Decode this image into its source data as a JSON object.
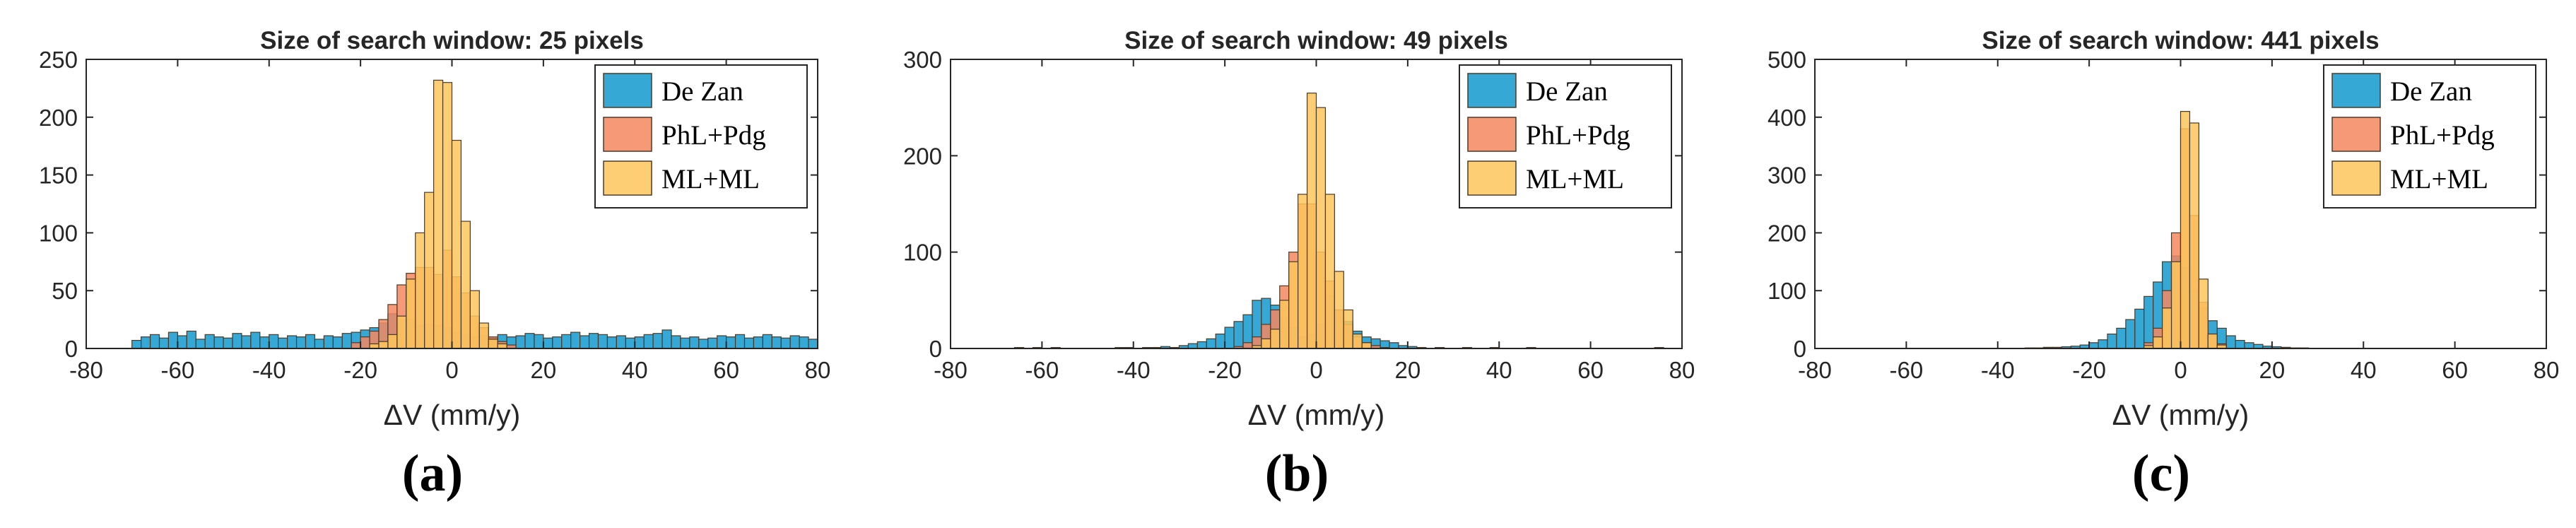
{
  "colors": {
    "de_zan": "#1f9ed1",
    "phl_pdg": "#f4875f",
    "ml_ml": "#fdc65a",
    "overlap": "#f1931c",
    "edge": "#4a3a2a",
    "axis": "#262626"
  },
  "chart_data": [
    {
      "type": "bar",
      "title": "Size of search window: 25 pixels",
      "xlabel": "ΔV (mm/y)",
      "ylabel": "",
      "xlim": [
        -80,
        80
      ],
      "ylim": [
        0,
        250
      ],
      "xticks": [
        "-80",
        "-60",
        "-40",
        "-20",
        "0",
        "20",
        "40",
        "60",
        "80"
      ],
      "yticks": [
        "0",
        "50",
        "100",
        "150",
        "200",
        "250"
      ],
      "legend": [
        "De Zan",
        "PhL+Pdg",
        "ML+ML"
      ],
      "legend_position": "top-right",
      "caption": "(a)",
      "series": [
        {
          "name": "De Zan",
          "bin_width": 2,
          "bin_start": -70,
          "counts": [
            7,
            10,
            12,
            9,
            14,
            11,
            15,
            8,
            12,
            10,
            9,
            13,
            11,
            14,
            10,
            12,
            9,
            11,
            10,
            12,
            8,
            11,
            10,
            13,
            14,
            16,
            18,
            22,
            30,
            24,
            25,
            20,
            21,
            20,
            18,
            14,
            12,
            10,
            11,
            9,
            12,
            10,
            11,
            13,
            12,
            9,
            10,
            12,
            14,
            11,
            13,
            12,
            10,
            11,
            9,
            10,
            12,
            13,
            16,
            11,
            9,
            10,
            8,
            9,
            11,
            10,
            12,
            9,
            10,
            12,
            10,
            9,
            11,
            10,
            8
          ]
        },
        {
          "name": "PhL+Pdg",
          "bin_width": 2,
          "bin_start": -22,
          "counts": [
            5,
            10,
            15,
            25,
            38,
            55,
            65,
            70,
            70,
            64,
            85,
            62,
            48,
            28,
            18,
            10,
            6,
            3
          ]
        },
        {
          "name": "ML+ML",
          "bin_width": 2,
          "bin_start": -18,
          "counts": [
            4,
            6,
            12,
            28,
            60,
            100,
            135,
            232,
            230,
            180,
            110,
            50,
            22,
            8,
            4
          ]
        }
      ]
    },
    {
      "type": "bar",
      "title": "Size of search window: 49 pixels",
      "xlabel": "ΔV (mm/y)",
      "ylabel": "",
      "xlim": [
        -80,
        80
      ],
      "ylim": [
        0,
        300
      ],
      "xticks": [
        "-80",
        "-60",
        "-40",
        "-20",
        "0",
        "20",
        "40",
        "60",
        "80"
      ],
      "yticks": [
        "0",
        "100",
        "200",
        "300"
      ],
      "legend": [
        "De Zan",
        "PhL+Pdg",
        "ML+ML"
      ],
      "legend_position": "top-right",
      "caption": "(b)",
      "series": [
        {
          "name": "De Zan",
          "bin_width": 2,
          "bin_start": -70,
          "counts": [
            0,
            0,
            1,
            0,
            1,
            0,
            1,
            0,
            0,
            0,
            0,
            0,
            0,
            1,
            1,
            0,
            1,
            1,
            2,
            1,
            3,
            5,
            7,
            10,
            15,
            22,
            28,
            35,
            50,
            52,
            45,
            32,
            22,
            12,
            15,
            25,
            55,
            40,
            28,
            18,
            12,
            10,
            8,
            6,
            3,
            2,
            1,
            0,
            1,
            0,
            0,
            1,
            0,
            0,
            1,
            0,
            0,
            0,
            1,
            0,
            0,
            0,
            0,
            0,
            0,
            0,
            0,
            0,
            0,
            0,
            0,
            0,
            1
          ]
        },
        {
          "name": "PhL+Pdg",
          "bin_width": 2,
          "bin_start": -18,
          "counts": [
            2,
            6,
            12,
            25,
            40,
            65,
            100,
            150,
            150,
            100,
            70,
            40,
            25,
            12,
            6,
            3,
            1
          ]
        },
        {
          "name": "ML+ML",
          "bin_width": 2,
          "bin_start": -14,
          "counts": [
            3,
            10,
            20,
            50,
            90,
            160,
            265,
            250,
            160,
            80,
            40,
            15,
            6
          ]
        }
      ]
    },
    {
      "type": "bar",
      "title": "Size of search window: 441 pixels",
      "xlabel": "ΔV (mm/y)",
      "ylabel": "",
      "xlim": [
        -80,
        80
      ],
      "ylim": [
        0,
        500
      ],
      "xticks": [
        "-80",
        "-60",
        "-40",
        "-20",
        "0",
        "20",
        "40",
        "60",
        "80"
      ],
      "yticks": [
        "0",
        "100",
        "200",
        "300",
        "400",
        "500"
      ],
      "legend": [
        "De Zan",
        "PhL+Pdg",
        "ML+ML"
      ],
      "legend_position": "top-right",
      "caption": "(c)",
      "series": [
        {
          "name": "De Zan",
          "bin_width": 2,
          "bin_start": -34,
          "counts": [
            1,
            1,
            2,
            2,
            3,
            4,
            6,
            10,
            15,
            25,
            35,
            50,
            68,
            90,
            115,
            150,
            160,
            140,
            100,
            70,
            48,
            35,
            22,
            14,
            10,
            7,
            4,
            3,
            2,
            1,
            1
          ]
        },
        {
          "name": "PhL+Pdg",
          "bin_width": 2,
          "bin_start": -8,
          "counts": [
            10,
            35,
            100,
            200,
            380,
            230,
            80,
            25,
            8
          ]
        },
        {
          "name": "ML+ML",
          "bin_width": 2,
          "bin_start": -8,
          "counts": [
            5,
            20,
            70,
            150,
            410,
            390,
            120,
            25,
            6
          ]
        }
      ]
    }
  ]
}
